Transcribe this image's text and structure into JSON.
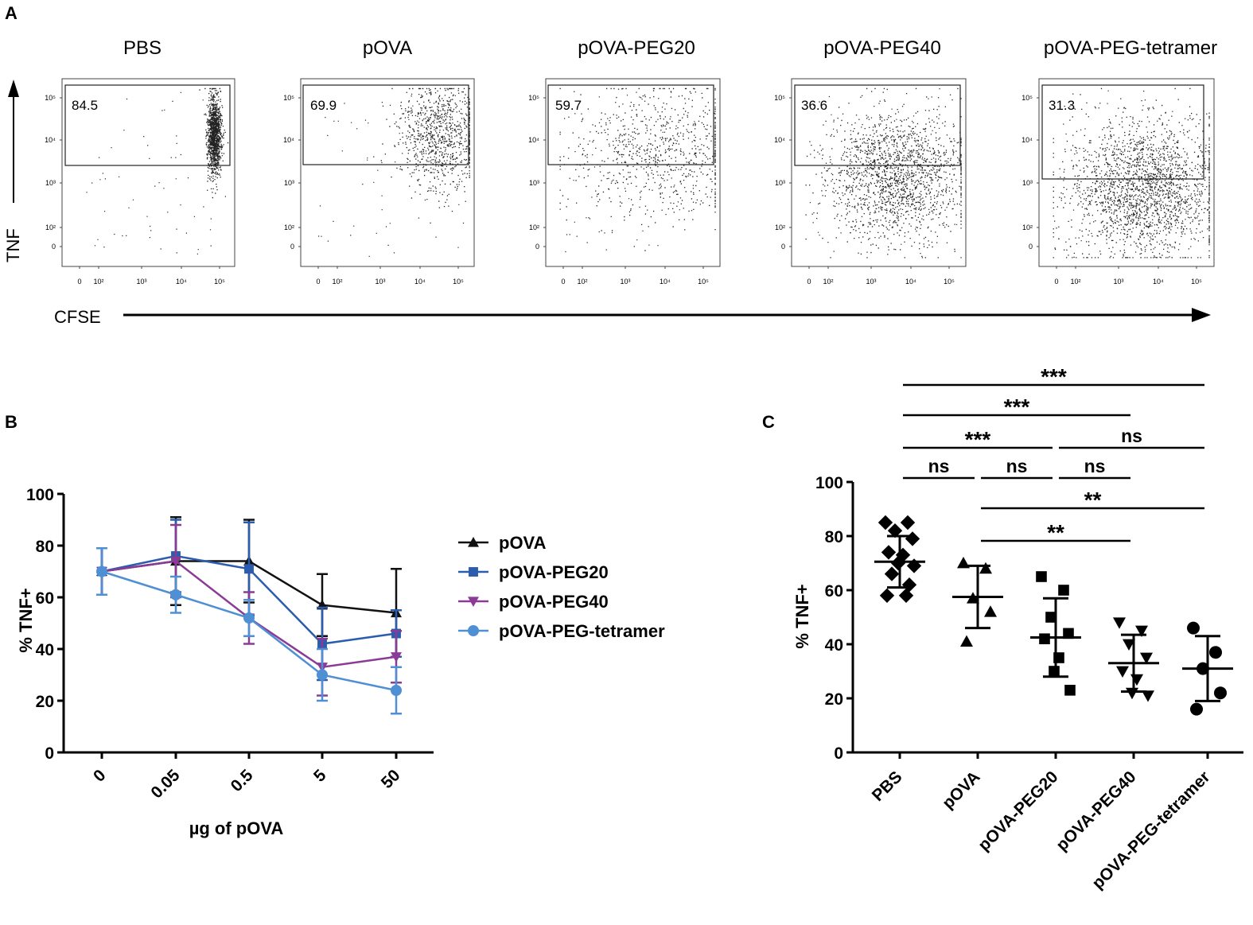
{
  "panel_labels": {
    "a": "A",
    "b": "B",
    "c": "C"
  },
  "panel_a": {
    "y_axis_label": "TNF",
    "x_axis_label": "CFSE",
    "y_ticks": [
      "10⁵",
      "10⁴",
      "10³",
      "10²",
      "0"
    ],
    "x_ticks": [
      "0",
      "10²",
      "10³",
      "10⁴",
      "10⁵"
    ],
    "plots": [
      {
        "title": "PBS",
        "gate_value": "84.5"
      },
      {
        "title": "pOVA",
        "gate_value": "69.9"
      },
      {
        "title": "pOVA-PEG20",
        "gate_value": "59.7"
      },
      {
        "title": "pOVA-PEG40",
        "gate_value": "36.6"
      },
      {
        "title": "pOVA-PEG-tetramer",
        "gate_value": "31.3"
      }
    ]
  },
  "chart_data": [
    {
      "panel": "B",
      "type": "line",
      "title": "",
      "xlabel": "µg of pOVA",
      "ylabel": "% TNF+",
      "categories": [
        "0",
        "0.05",
        "0.5",
        "5",
        "50"
      ],
      "ylim": [
        0,
        100
      ],
      "yticks": [
        0,
        20,
        40,
        60,
        80,
        100
      ],
      "legend_position": "right",
      "series": [
        {
          "name": "pOVA",
          "color": "#111111",
          "marker": "triangle-up",
          "values": [
            70,
            74,
            74,
            57,
            54
          ],
          "errors": [
            9,
            17,
            16,
            12,
            17
          ]
        },
        {
          "name": "pOVA-PEG20",
          "color": "#2b5cae",
          "marker": "square",
          "values": [
            70,
            76,
            71,
            42,
            46
          ],
          "errors": [
            9,
            14,
            18,
            14,
            9
          ]
        },
        {
          "name": "pOVA-PEG40",
          "color": "#8b3a96",
          "marker": "triangle-down",
          "values": [
            70,
            74,
            52,
            33,
            37
          ],
          "errors": [
            9,
            14,
            10,
            11,
            10
          ]
        },
        {
          "name": "pOVA-PEG-tetramer",
          "color": "#4f8fd4",
          "marker": "circle",
          "values": [
            70,
            61,
            52,
            30,
            24
          ],
          "errors": [
            9,
            7,
            7,
            10,
            9
          ]
        }
      ]
    },
    {
      "panel": "C",
      "type": "scatter",
      "title": "",
      "xlabel": "",
      "ylabel": "% TNF+",
      "categories": [
        "PBS",
        "pOVA",
        "pOVA-PEG20",
        "pOVA-PEG40",
        "pOVA-PEG-tetramer"
      ],
      "ylim": [
        0,
        100
      ],
      "yticks": [
        0,
        20,
        40,
        60,
        80,
        100
      ],
      "groups": [
        {
          "name": "PBS",
          "marker": "diamond",
          "mean": 70.5,
          "sd": 9.5,
          "points": [
            85,
            85,
            82,
            79,
            74,
            73,
            70,
            69,
            66,
            62,
            58,
            58
          ]
        },
        {
          "name": "pOVA",
          "marker": "triangle-up",
          "mean": 57.5,
          "sd": 11.5,
          "points": [
            70,
            68,
            57,
            52,
            41
          ]
        },
        {
          "name": "pOVA-PEG20",
          "marker": "square",
          "mean": 42.5,
          "sd": 14.5,
          "points": [
            65,
            60,
            50,
            44,
            42,
            35,
            30,
            23
          ]
        },
        {
          "name": "pOVA-PEG40",
          "marker": "triangle-down",
          "mean": 33,
          "sd": 10.5,
          "points": [
            48,
            45,
            40,
            35,
            30,
            27,
            22,
            21
          ]
        },
        {
          "name": "pOVA-PEG-tetramer",
          "marker": "circle",
          "mean": 31,
          "sd": 12,
          "points": [
            46,
            37,
            31,
            22,
            16
          ]
        }
      ],
      "significance": [
        {
          "from": "PBS",
          "to": "pOVA",
          "label": "ns"
        },
        {
          "from": "pOVA",
          "to": "pOVA-PEG20",
          "label": "ns"
        },
        {
          "from": "pOVA-PEG20",
          "to": "pOVA-PEG40",
          "label": "ns"
        },
        {
          "from": "PBS",
          "to": "pOVA-PEG20",
          "label": "***"
        },
        {
          "from": "pOVA-PEG20",
          "to": "pOVA-PEG-tetramer",
          "label": "ns"
        },
        {
          "from": "PBS",
          "to": "pOVA-PEG40",
          "label": "***"
        },
        {
          "from": "PBS",
          "to": "pOVA-PEG-tetramer",
          "label": "***"
        },
        {
          "from": "pOVA",
          "to": "pOVA-PEG40",
          "label": "**"
        },
        {
          "from": "pOVA",
          "to": "pOVA-PEG-tetramer",
          "label": "**"
        }
      ]
    }
  ]
}
